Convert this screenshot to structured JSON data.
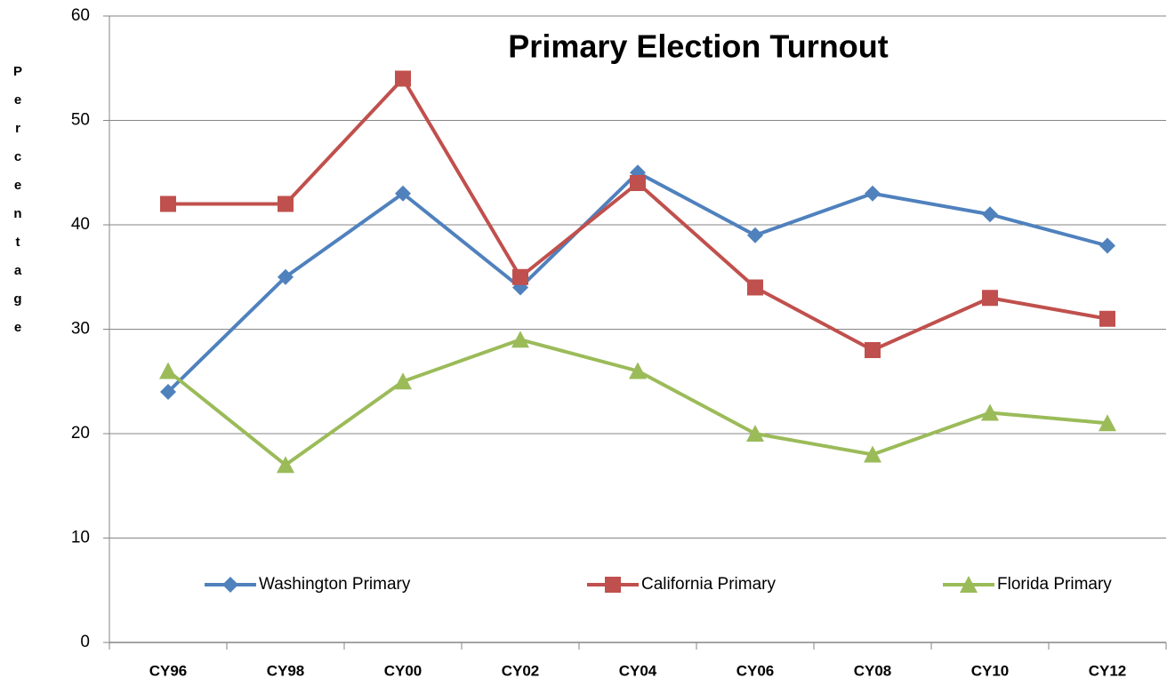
{
  "chart_data": {
    "type": "line",
    "title": "Primary Election Turnout",
    "ylabel": "Percentage",
    "categories": [
      "CY96",
      "CY98",
      "CY00",
      "CY02",
      "CY04",
      "CY06",
      "CY08",
      "CY10",
      "CY12"
    ],
    "series": [
      {
        "name": "Washington Primary",
        "color": "#4f81bd",
        "marker": "diamond",
        "values": [
          24,
          35,
          43,
          34,
          45,
          39,
          43,
          41,
          38
        ]
      },
      {
        "name": "California Primary",
        "color": "#c0504d",
        "marker": "square",
        "values": [
          42,
          42,
          54,
          35,
          44,
          34,
          28,
          33,
          31
        ]
      },
      {
        "name": "Florida Primary",
        "color": "#9bbb59",
        "marker": "triangle",
        "values": [
          26,
          17,
          25,
          29,
          26,
          20,
          18,
          22,
          21
        ]
      }
    ],
    "ylim": [
      0,
      60
    ],
    "yticks": [
      0,
      10,
      20,
      30,
      40,
      50,
      60
    ],
    "grid": true,
    "legend": "bottom"
  }
}
